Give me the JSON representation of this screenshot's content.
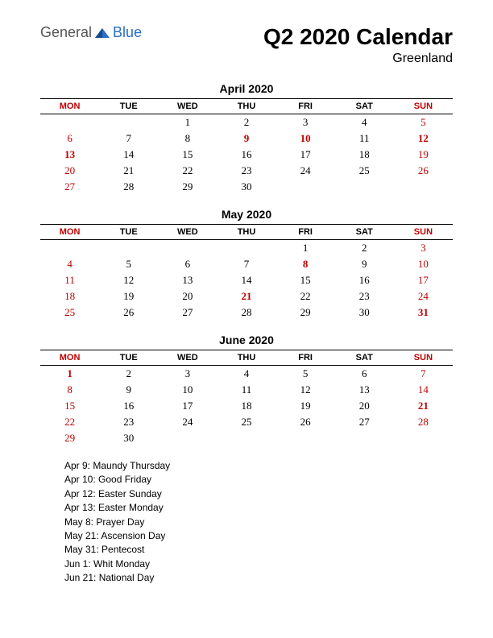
{
  "logo": {
    "general": "General",
    "blue": "Blue"
  },
  "title": "Q2 2020 Calendar",
  "subtitle": "Greenland",
  "colors": {
    "red": "#c00000",
    "text": "#000000",
    "logo_blue": "#2a6dc9",
    "logo_gray": "#555555",
    "background": "#ffffff"
  },
  "day_headers": [
    "MON",
    "TUE",
    "WED",
    "THU",
    "FRI",
    "SAT",
    "SUN"
  ],
  "header_red_indices": [
    0,
    6
  ],
  "months": [
    {
      "title": "April 2020",
      "weeks": [
        [
          {
            "d": ""
          },
          {
            "d": ""
          },
          {
            "d": "1"
          },
          {
            "d": "2"
          },
          {
            "d": "3"
          },
          {
            "d": "4"
          },
          {
            "d": "5",
            "r": 1
          }
        ],
        [
          {
            "d": "6",
            "r": 1
          },
          {
            "d": "7"
          },
          {
            "d": "8"
          },
          {
            "d": "9",
            "r": 1,
            "b": 1
          },
          {
            "d": "10",
            "r": 1,
            "b": 1
          },
          {
            "d": "11"
          },
          {
            "d": "12",
            "r": 1,
            "b": 1
          }
        ],
        [
          {
            "d": "13",
            "r": 1,
            "b": 1
          },
          {
            "d": "14"
          },
          {
            "d": "15"
          },
          {
            "d": "16"
          },
          {
            "d": "17"
          },
          {
            "d": "18"
          },
          {
            "d": "19",
            "r": 1
          }
        ],
        [
          {
            "d": "20",
            "r": 1
          },
          {
            "d": "21"
          },
          {
            "d": "22"
          },
          {
            "d": "23"
          },
          {
            "d": "24"
          },
          {
            "d": "25"
          },
          {
            "d": "26",
            "r": 1
          }
        ],
        [
          {
            "d": "27",
            "r": 1
          },
          {
            "d": "28"
          },
          {
            "d": "29"
          },
          {
            "d": "30"
          },
          {
            "d": ""
          },
          {
            "d": ""
          },
          {
            "d": ""
          }
        ]
      ]
    },
    {
      "title": "May 2020",
      "weeks": [
        [
          {
            "d": ""
          },
          {
            "d": ""
          },
          {
            "d": ""
          },
          {
            "d": ""
          },
          {
            "d": "1"
          },
          {
            "d": "2"
          },
          {
            "d": "3",
            "r": 1
          }
        ],
        [
          {
            "d": "4",
            "r": 1
          },
          {
            "d": "5"
          },
          {
            "d": "6"
          },
          {
            "d": "7"
          },
          {
            "d": "8",
            "r": 1,
            "b": 1
          },
          {
            "d": "9"
          },
          {
            "d": "10",
            "r": 1
          }
        ],
        [
          {
            "d": "11",
            "r": 1
          },
          {
            "d": "12"
          },
          {
            "d": "13"
          },
          {
            "d": "14"
          },
          {
            "d": "15"
          },
          {
            "d": "16"
          },
          {
            "d": "17",
            "r": 1
          }
        ],
        [
          {
            "d": "18",
            "r": 1
          },
          {
            "d": "19"
          },
          {
            "d": "20"
          },
          {
            "d": "21",
            "r": 1,
            "b": 1
          },
          {
            "d": "22"
          },
          {
            "d": "23"
          },
          {
            "d": "24",
            "r": 1
          }
        ],
        [
          {
            "d": "25",
            "r": 1
          },
          {
            "d": "26"
          },
          {
            "d": "27"
          },
          {
            "d": "28"
          },
          {
            "d": "29"
          },
          {
            "d": "30"
          },
          {
            "d": "31",
            "r": 1,
            "b": 1
          }
        ]
      ]
    },
    {
      "title": "June 2020",
      "weeks": [
        [
          {
            "d": "1",
            "r": 1,
            "b": 1
          },
          {
            "d": "2"
          },
          {
            "d": "3"
          },
          {
            "d": "4"
          },
          {
            "d": "5"
          },
          {
            "d": "6"
          },
          {
            "d": "7",
            "r": 1
          }
        ],
        [
          {
            "d": "8",
            "r": 1
          },
          {
            "d": "9"
          },
          {
            "d": "10"
          },
          {
            "d": "11"
          },
          {
            "d": "12"
          },
          {
            "d": "13"
          },
          {
            "d": "14",
            "r": 1
          }
        ],
        [
          {
            "d": "15",
            "r": 1
          },
          {
            "d": "16"
          },
          {
            "d": "17"
          },
          {
            "d": "18"
          },
          {
            "d": "19"
          },
          {
            "d": "20"
          },
          {
            "d": "21",
            "r": 1,
            "b": 1
          }
        ],
        [
          {
            "d": "22",
            "r": 1
          },
          {
            "d": "23"
          },
          {
            "d": "24"
          },
          {
            "d": "25"
          },
          {
            "d": "26"
          },
          {
            "d": "27"
          },
          {
            "d": "28",
            "r": 1
          }
        ],
        [
          {
            "d": "29",
            "r": 1
          },
          {
            "d": "30"
          },
          {
            "d": ""
          },
          {
            "d": ""
          },
          {
            "d": ""
          },
          {
            "d": ""
          },
          {
            "d": ""
          }
        ]
      ]
    }
  ],
  "holidays": [
    "Apr 9: Maundy Thursday",
    "Apr 10: Good Friday",
    "Apr 12: Easter Sunday",
    "Apr 13: Easter Monday",
    "May 8: Prayer Day",
    "May 21: Ascension Day",
    "May 31: Pentecost",
    "Jun 1: Whit Monday",
    "Jun 21: National Day"
  ]
}
